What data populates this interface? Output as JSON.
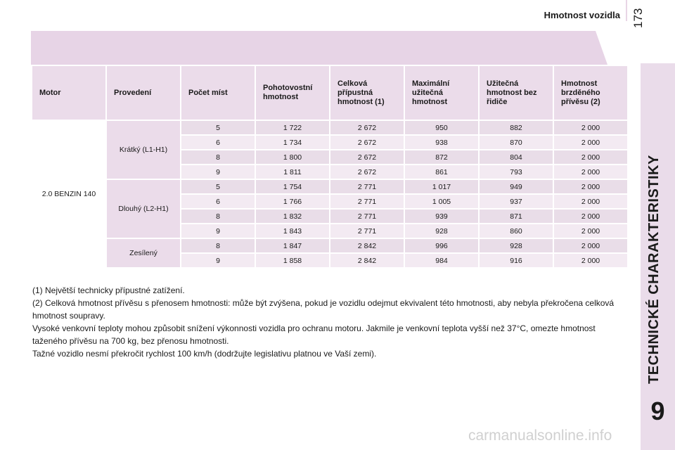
{
  "header": {
    "title": "Hmotnost vozidla",
    "page_number": "173"
  },
  "sidebar": {
    "vertical_title": "TECHNICKÉ CHARAKTERISTIKY",
    "chapter_number": "9"
  },
  "table": {
    "columns": [
      "Motor",
      "Provedení",
      "Počet míst",
      "Pohotovostní hmotnost",
      "Celková přípustná hmotnost (1)",
      "Maximální užitečná hmotnost",
      "Užitečná hmotnost bez řidiče",
      "Hmotnost brzděného přívěsu (2)"
    ],
    "motor": "2.0 BENZIN 140",
    "groups": [
      {
        "variant": "Krátký (L1-H1)",
        "rows": [
          [
            "5",
            "1 722",
            "2 672",
            "950",
            "882",
            "2 000"
          ],
          [
            "6",
            "1 734",
            "2 672",
            "938",
            "870",
            "2 000"
          ],
          [
            "8",
            "1 800",
            "2 672",
            "872",
            "804",
            "2 000"
          ],
          [
            "9",
            "1 811",
            "2 672",
            "861",
            "793",
            "2 000"
          ]
        ]
      },
      {
        "variant": "Dlouhý (L2-H1)",
        "rows": [
          [
            "5",
            "1 754",
            "2 771",
            "1 017",
            "949",
            "2 000"
          ],
          [
            "6",
            "1 766",
            "2 771",
            "1 005",
            "937",
            "2 000"
          ],
          [
            "8",
            "1 832",
            "2 771",
            "939",
            "871",
            "2 000"
          ],
          [
            "9",
            "1 843",
            "2 771",
            "928",
            "860",
            "2 000"
          ]
        ]
      },
      {
        "variant": "Zesílený",
        "rows": [
          [
            "8",
            "1 847",
            "2 842",
            "996",
            "928",
            "2 000"
          ],
          [
            "9",
            "1 858",
            "2 842",
            "984",
            "916",
            "2 000"
          ]
        ]
      }
    ]
  },
  "notes": [
    "(1) Největší technicky přípustné zatížení.",
    "(2) Celková hmotnost přívěsu s přenosem hmotnosti: může být zvýšena, pokud je vozidlu odejmut ekvivalent této hmotnosti, aby nebyla překročena celková hmotnost soupravy.",
    "Vysoké venkovní teploty mohou způsobit snížení výkonnosti vozidla pro ochranu motoru. Jakmile je venkovní teplota vyšší než 37°C, omezte hmotnost taženého přívěsu na 700 kg, bez přenosu hmotnosti.",
    "Tažné vozidlo nesmí překročit rychlost 100 km/h (dodržujte legislativu platnou ve Vaší zemi)."
  ],
  "watermark": "carmanualsonline.info"
}
